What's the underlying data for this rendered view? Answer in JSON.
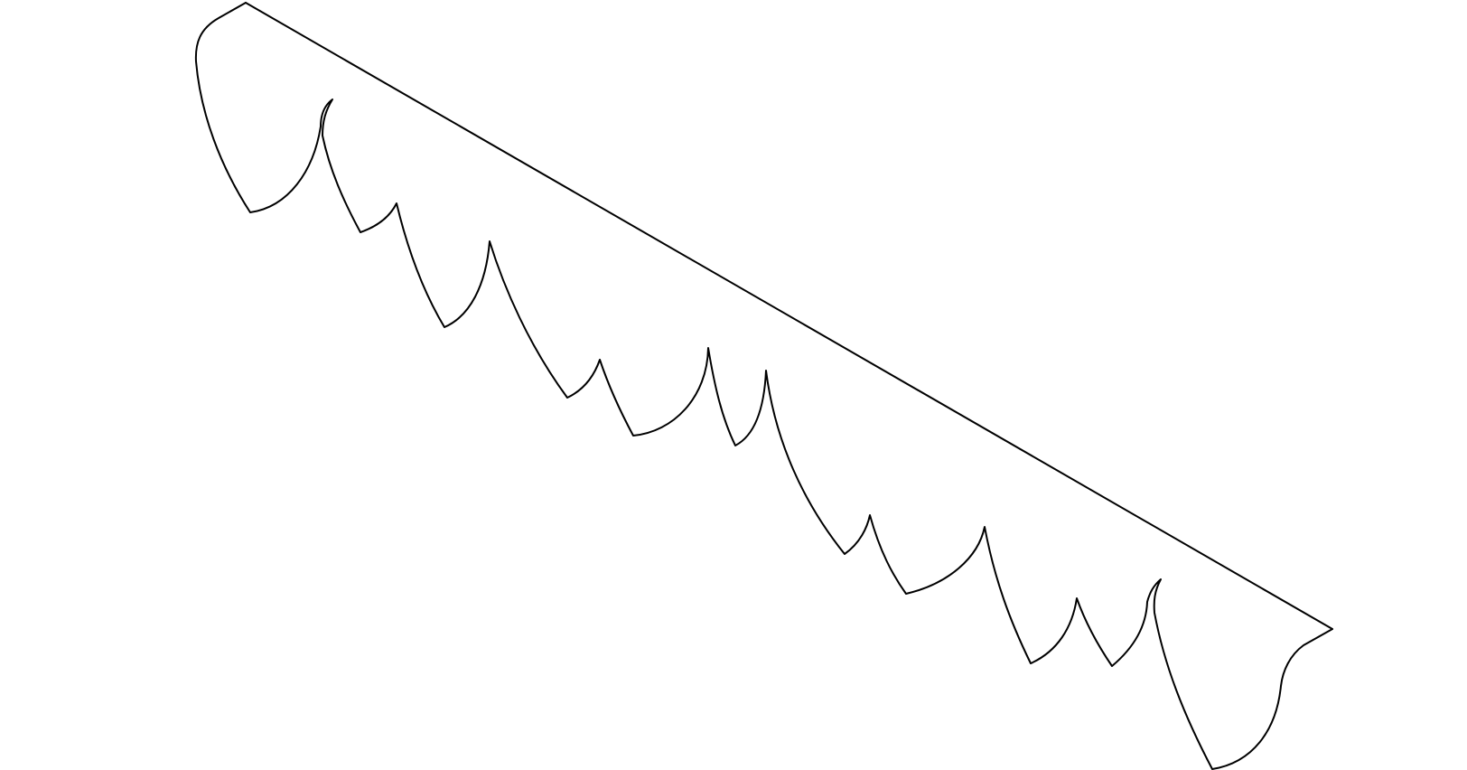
{
  "shape": {
    "kind": "serrated-blade-outline",
    "stroke": "#000000",
    "fill": "none",
    "background": "#ffffff"
  }
}
